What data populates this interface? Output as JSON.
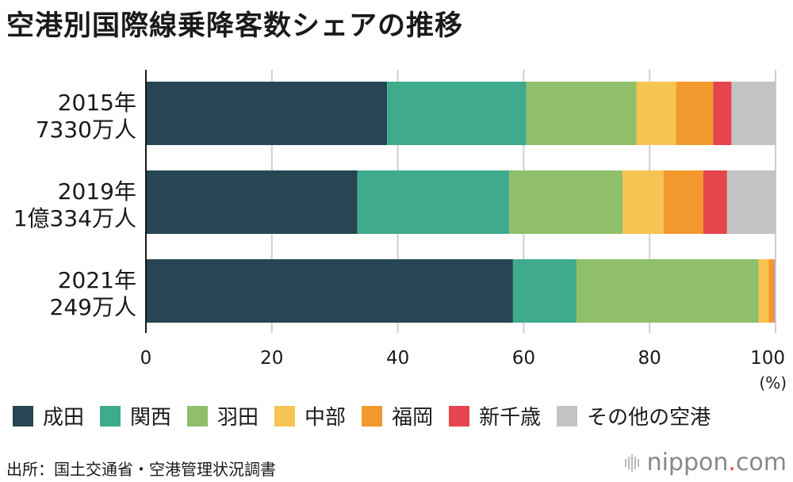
{
  "title": "空港別国際線乗降客数シェアの推移",
  "chart_data": {
    "type": "bar",
    "orientation": "horizontal",
    "stacked": true,
    "title": "空港別国際線乗降客数シェアの推移",
    "categories": [
      {
        "year": "2015年",
        "total": "7330万人"
      },
      {
        "year": "2019年",
        "total": "1億334万人"
      },
      {
        "year": "2021年",
        "total": "249万人"
      }
    ],
    "series": [
      {
        "name": "成田",
        "color": "#264653",
        "values": [
          38.3,
          33.6,
          58.3
        ]
      },
      {
        "name": "関西",
        "color": "#3fab8c",
        "values": [
          22.1,
          24.1,
          10.1
        ]
      },
      {
        "name": "羽田",
        "color": "#8fbf6a",
        "values": [
          17.5,
          18.0,
          28.9
        ]
      },
      {
        "name": "中部",
        "color": "#f6c452",
        "values": [
          6.3,
          6.5,
          1.6
        ]
      },
      {
        "name": "福岡",
        "color": "#f2992e",
        "values": [
          5.9,
          6.3,
          0.8
        ]
      },
      {
        "name": "新千歳",
        "color": "#e5454c",
        "values": [
          2.9,
          3.8,
          0.1
        ]
      },
      {
        "name": "その他の空港",
        "color": "#c3c3c3",
        "values": [
          7.0,
          7.7,
          0.2
        ]
      }
    ],
    "xlim": [
      0,
      100
    ],
    "xticks": [
      0,
      20,
      40,
      60,
      80,
      100
    ],
    "xunit": "(%)",
    "grid": true,
    "legend": "bottom"
  },
  "source": "出所：国土交通省・空港管理状況調書",
  "logo": {
    "name": "nippon",
    "dot": ".",
    "suffix": "com"
  }
}
